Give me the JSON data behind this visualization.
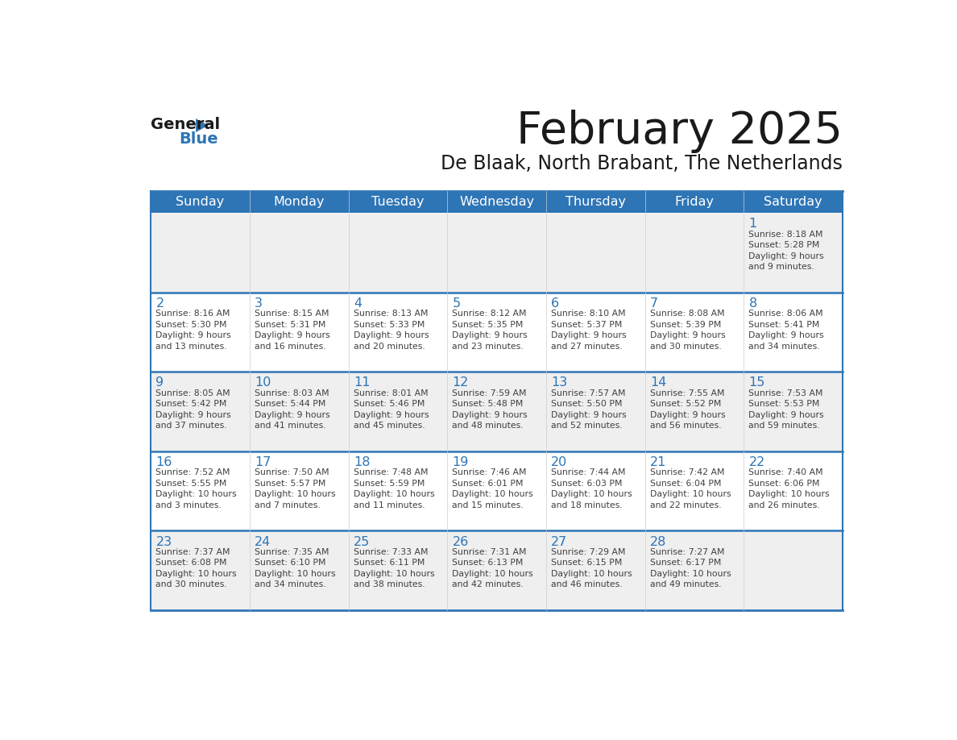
{
  "title": "February 2025",
  "subtitle": "De Blaak, North Brabant, The Netherlands",
  "days_of_week": [
    "Sunday",
    "Monday",
    "Tuesday",
    "Wednesday",
    "Thursday",
    "Friday",
    "Saturday"
  ],
  "header_bg": "#2E75B6",
  "header_text": "#FFFFFF",
  "row_bg_odd": "#EFEFEF",
  "row_bg_even": "#FFFFFF",
  "cell_border_color": "#2E75B6",
  "day_number_color": "#2E75B6",
  "info_text_color": "#404040",
  "title_color": "#1a1a1a",
  "subtitle_color": "#1a1a1a",
  "logo_text_color": "#1a1a1a",
  "logo_blue_color": "#2E75B6",
  "calendar_data": [
    [
      null,
      null,
      null,
      null,
      null,
      null,
      {
        "day": 1,
        "sunrise": "8:18 AM",
        "sunset": "5:28 PM",
        "daylight": "9 hours and 9 minutes"
      }
    ],
    [
      {
        "day": 2,
        "sunrise": "8:16 AM",
        "sunset": "5:30 PM",
        "daylight": "9 hours and 13 minutes"
      },
      {
        "day": 3,
        "sunrise": "8:15 AM",
        "sunset": "5:31 PM",
        "daylight": "9 hours and 16 minutes"
      },
      {
        "day": 4,
        "sunrise": "8:13 AM",
        "sunset": "5:33 PM",
        "daylight": "9 hours and 20 minutes"
      },
      {
        "day": 5,
        "sunrise": "8:12 AM",
        "sunset": "5:35 PM",
        "daylight": "9 hours and 23 minutes"
      },
      {
        "day": 6,
        "sunrise": "8:10 AM",
        "sunset": "5:37 PM",
        "daylight": "9 hours and 27 minutes"
      },
      {
        "day": 7,
        "sunrise": "8:08 AM",
        "sunset": "5:39 PM",
        "daylight": "9 hours and 30 minutes"
      },
      {
        "day": 8,
        "sunrise": "8:06 AM",
        "sunset": "5:41 PM",
        "daylight": "9 hours and 34 minutes"
      }
    ],
    [
      {
        "day": 9,
        "sunrise": "8:05 AM",
        "sunset": "5:42 PM",
        "daylight": "9 hours and 37 minutes"
      },
      {
        "day": 10,
        "sunrise": "8:03 AM",
        "sunset": "5:44 PM",
        "daylight": "9 hours and 41 minutes"
      },
      {
        "day": 11,
        "sunrise": "8:01 AM",
        "sunset": "5:46 PM",
        "daylight": "9 hours and 45 minutes"
      },
      {
        "day": 12,
        "sunrise": "7:59 AM",
        "sunset": "5:48 PM",
        "daylight": "9 hours and 48 minutes"
      },
      {
        "day": 13,
        "sunrise": "7:57 AM",
        "sunset": "5:50 PM",
        "daylight": "9 hours and 52 minutes"
      },
      {
        "day": 14,
        "sunrise": "7:55 AM",
        "sunset": "5:52 PM",
        "daylight": "9 hours and 56 minutes"
      },
      {
        "day": 15,
        "sunrise": "7:53 AM",
        "sunset": "5:53 PM",
        "daylight": "9 hours and 59 minutes"
      }
    ],
    [
      {
        "day": 16,
        "sunrise": "7:52 AM",
        "sunset": "5:55 PM",
        "daylight": "10 hours and 3 minutes"
      },
      {
        "day": 17,
        "sunrise": "7:50 AM",
        "sunset": "5:57 PM",
        "daylight": "10 hours and 7 minutes"
      },
      {
        "day": 18,
        "sunrise": "7:48 AM",
        "sunset": "5:59 PM",
        "daylight": "10 hours and 11 minutes"
      },
      {
        "day": 19,
        "sunrise": "7:46 AM",
        "sunset": "6:01 PM",
        "daylight": "10 hours and 15 minutes"
      },
      {
        "day": 20,
        "sunrise": "7:44 AM",
        "sunset": "6:03 PM",
        "daylight": "10 hours and 18 minutes"
      },
      {
        "day": 21,
        "sunrise": "7:42 AM",
        "sunset": "6:04 PM",
        "daylight": "10 hours and 22 minutes"
      },
      {
        "day": 22,
        "sunrise": "7:40 AM",
        "sunset": "6:06 PM",
        "daylight": "10 hours and 26 minutes"
      }
    ],
    [
      {
        "day": 23,
        "sunrise": "7:37 AM",
        "sunset": "6:08 PM",
        "daylight": "10 hours and 30 minutes"
      },
      {
        "day": 24,
        "sunrise": "7:35 AM",
        "sunset": "6:10 PM",
        "daylight": "10 hours and 34 minutes"
      },
      {
        "day": 25,
        "sunrise": "7:33 AM",
        "sunset": "6:11 PM",
        "daylight": "10 hours and 38 minutes"
      },
      {
        "day": 26,
        "sunrise": "7:31 AM",
        "sunset": "6:13 PM",
        "daylight": "10 hours and 42 minutes"
      },
      {
        "day": 27,
        "sunrise": "7:29 AM",
        "sunset": "6:15 PM",
        "daylight": "10 hours and 46 minutes"
      },
      {
        "day": 28,
        "sunrise": "7:27 AM",
        "sunset": "6:17 PM",
        "daylight": "10 hours and 49 minutes"
      },
      null
    ]
  ]
}
